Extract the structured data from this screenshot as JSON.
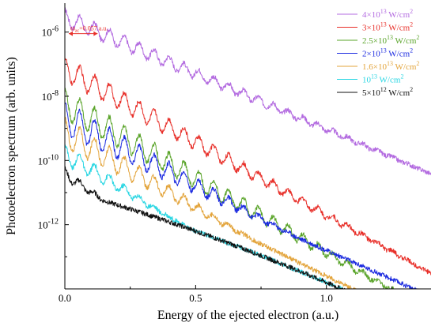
{
  "chart_data": {
    "type": "line",
    "xlabel": "Energy of the ejected electron (a.u.)",
    "ylabel": "Photoelectron spectrum (arb. units)",
    "xlim": [
      0.0,
      1.4
    ],
    "ylim_log10": [
      -14,
      -5.1
    ],
    "yscale": "log",
    "x_ticks": [
      {
        "value": 0.0,
        "label": "0.0"
      },
      {
        "value": 0.5,
        "label": "0.5"
      },
      {
        "value": 1.0,
        "label": "1.0"
      }
    ],
    "y_ticks": [
      {
        "exp": -6,
        "base": "10",
        "sup": "-6"
      },
      {
        "exp": -8,
        "base": "10",
        "sup": "-8"
      },
      {
        "exp": -10,
        "base": "10",
        "sup": "-10"
      },
      {
        "exp": -12,
        "base": "10",
        "sup": "-12"
      }
    ],
    "legend_position": "top-right",
    "annotation": {
      "label": "ω",
      "sub": "ac",
      "rest": "=0.057 a.u.",
      "x_start": 0.015,
      "x_end": 0.125,
      "y_exp": -6.05
    },
    "series": [
      {
        "name_main": "4×10",
        "name_sup": "13",
        "name_unit": " W/cm",
        "name_unit_sup": "2",
        "color": "#b36be0",
        "base": -5.8,
        "slope": -3.3,
        "amp": 0.5,
        "period": 0.057,
        "xmax": 1.4,
        "floor_exp": -14.5
      },
      {
        "name_main": "3×10",
        "name_sup": "13",
        "name_unit": " W/cm",
        "name_unit_sup": "2",
        "color": "#e8302a",
        "base": -7.5,
        "slope": -4.3,
        "amp": 0.7,
        "period": 0.057,
        "xmax": 1.4,
        "floor_exp": -14.5
      },
      {
        "name_main": "2.5×10",
        "name_sup": "13",
        "name_unit": " W/cm",
        "name_unit_sup": "2",
        "color": "#5aa42a",
        "base": -8.7,
        "slope": -4.3,
        "amp": 0.9,
        "period": 0.057,
        "xmax": 1.4,
        "floor_exp": -14.5
      },
      {
        "name_main": "2×10",
        "name_sup": "13",
        "name_unit": " W/cm",
        "name_unit_sup": "2",
        "color": "#1c2be0",
        "base": -9.2,
        "slope": -3.6,
        "amp": 1.0,
        "period": 0.057,
        "xmax": 0.9,
        "floor_exp": -14.5
      },
      {
        "name_main": "1.6×10",
        "name_sup": "13",
        "name_unit": " W/cm",
        "name_unit_sup": "2",
        "color": "#e3a43b",
        "base": -9.6,
        "slope": -4.0,
        "amp": 0.9,
        "period": 0.057,
        "xmax": 0.72,
        "floor_exp": -14.5
      },
      {
        "name_main": "10",
        "name_sup": "13",
        "name_unit": " W/cm",
        "name_unit_sup": "2",
        "color": "#2ad6e3",
        "base": -10.1,
        "slope": -4.2,
        "amp": 0.6,
        "period": 0.057,
        "xmax": 0.42,
        "floor_exp": -14.5
      },
      {
        "name_main": "5×10",
        "name_sup": "12",
        "name_unit": " W/cm",
        "name_unit_sup": "2",
        "color": "#111111",
        "base": -10.6,
        "slope": -4.6,
        "amp": 0.35,
        "period": 0.057,
        "xmax": 0.18,
        "floor_exp": -14.5
      }
    ]
  }
}
